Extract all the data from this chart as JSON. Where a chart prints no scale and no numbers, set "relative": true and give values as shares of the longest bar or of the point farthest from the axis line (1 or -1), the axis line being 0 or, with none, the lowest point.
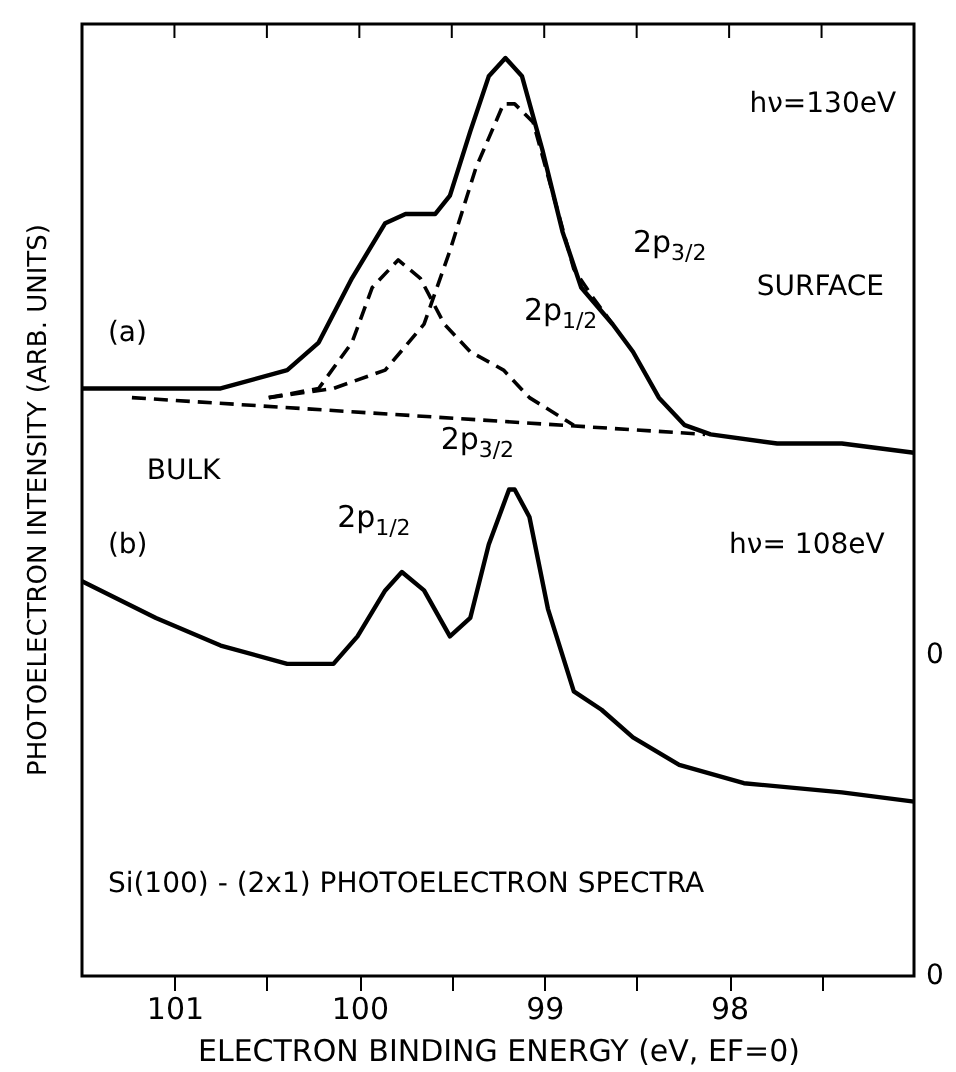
{
  "chart_data": {
    "type": "line",
    "relative": true,
    "xlabel": "ELECTRON BINDING ENERGY (eV, EF=0)",
    "ylabel": "PHOTOELECTRON INTENSITY (ARB. UNITS)",
    "xlim": [
      101.5,
      97.0
    ],
    "xticks": [
      101,
      {
        "value": 100.5,
        "label": null
      },
      100,
      {
        "value": 99.5,
        "label": null
      },
      99,
      {
        "value": 98.5,
        "label": null
      },
      98,
      {
        "value": 97.5,
        "label": null
      }
    ],
    "grid": false,
    "legend": false,
    "marker": "none",
    "series": [
      {
        "color": "#000000",
        "line_style": "solid",
        "x": [
          101.5,
          100.75,
          100.39,
          100.22,
          100.04,
          99.86,
          99.75,
          99.59,
          99.51,
          99.4,
          99.3,
          99.21,
          99.12,
          99.01,
          98.9,
          98.8,
          98.63,
          98.52,
          98.38,
          98.24,
          98.1,
          97.74,
          97.39,
          97.0
        ],
        "values": [
          0.64,
          0.64,
          0.66,
          0.69,
          0.76,
          0.82,
          0.83,
          0.83,
          0.85,
          0.92,
          0.98,
          1.0,
          0.98,
          0.9,
          0.81,
          0.75,
          0.71,
          0.68,
          0.63,
          0.6,
          0.59,
          0.58,
          0.58,
          0.57
        ]
      },
      {
        "color": "#000000",
        "line_style": "dashed",
        "x": [
          100.49,
          100.22,
          100.04,
          99.93,
          99.79,
          99.67,
          99.54,
          99.4,
          99.22,
          99.08,
          98.84
        ],
        "values": [
          0.63,
          0.64,
          0.69,
          0.75,
          0.78,
          0.76,
          0.71,
          0.68,
          0.66,
          0.63,
          0.6
        ]
      },
      {
        "color": "#000000",
        "line_style": "dashed",
        "x": [
          100.49,
          100.14,
          99.86,
          99.65,
          99.51,
          99.37,
          99.22,
          99.16,
          99.06,
          98.95,
          98.84,
          98.74,
          98.63
        ],
        "values": [
          0.63,
          0.64,
          0.66,
          0.71,
          0.79,
          0.88,
          0.95,
          0.95,
          0.93,
          0.85,
          0.77,
          0.74,
          0.71
        ]
      },
      {
        "color": "#000000",
        "line_style": "dashed",
        "x": [
          101.23,
          98.13
        ],
        "values": [
          0.63,
          0.59
        ]
      },
      {
        "color": "#000000",
        "line_style": "solid",
        "x": [
          101.5,
          101.1,
          100.75,
          100.39,
          100.14,
          100.01,
          99.86,
          99.77,
          99.65,
          99.51,
          99.4,
          99.3,
          99.19,
          99.16,
          99.08,
          98.98,
          98.84,
          98.69,
          98.52,
          98.27,
          97.92,
          97.39,
          97.0
        ],
        "values": [
          0.43,
          0.39,
          0.36,
          0.34,
          0.34,
          0.37,
          0.42,
          0.44,
          0.42,
          0.37,
          0.39,
          0.47,
          0.53,
          0.53,
          0.5,
          0.4,
          0.31,
          0.29,
          0.26,
          0.23,
          0.21,
          0.2,
          0.19
        ]
      }
    ],
    "annotations": [
      "hν=130eV",
      "(a)",
      "2p$_{3/2}$",
      "SURFACE",
      "2p$_{1/2}$",
      "BULK",
      "(b)",
      "2p$_{1/2}$",
      "2p$_{3/2}$",
      "hν= 108eV",
      "Si(100) - (2x1)  PHOTOELECTRON SPECTRA",
      "0",
      "0"
    ]
  }
}
